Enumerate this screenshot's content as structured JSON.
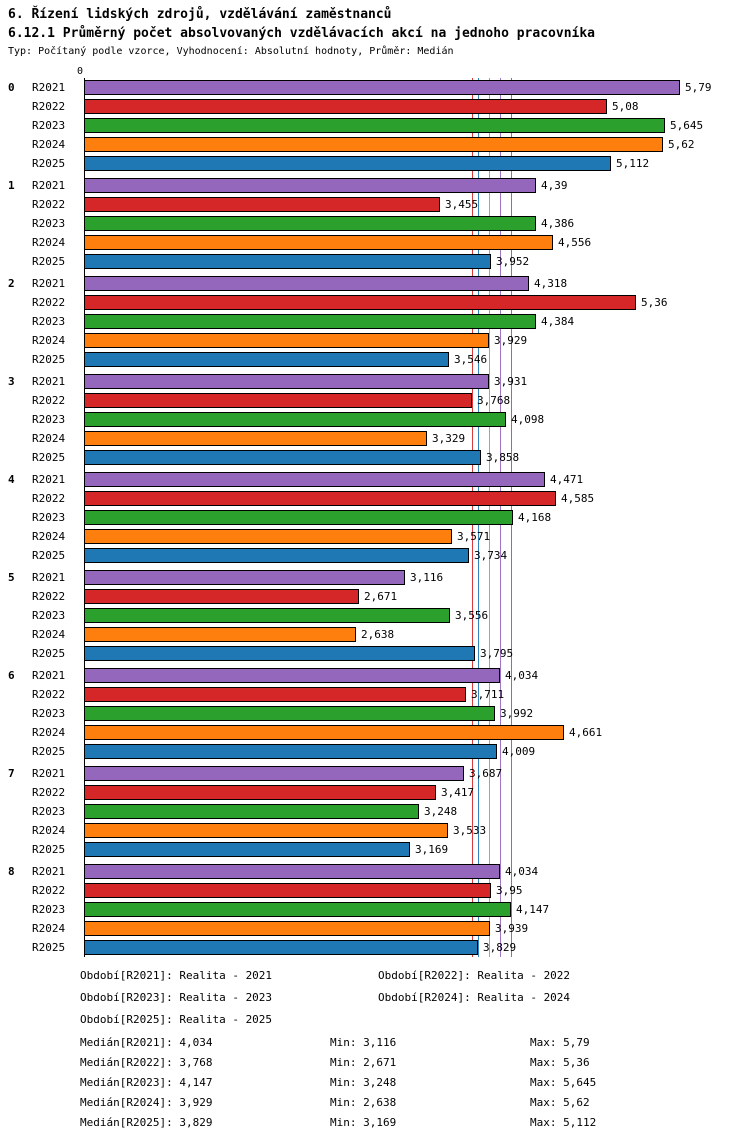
{
  "header": {
    "line1": "6. Řízení lidských zdrojů, vzdělávání zaměstnanců",
    "line2": "6.12.1 Průměrný počet absolvovaných vzdělávacích akcí na jednoho pracovníka",
    "meta": "Typ: Počítaný podle vzorce, Vyhodnocení: Absolutní hodnoty, Průměr: Medián"
  },
  "chart_data": {
    "type": "bar",
    "orientation": "horizontal",
    "axis_origin_label": "0",
    "xlim": [
      0,
      6.45
    ],
    "grid": false,
    "legend_position": "bottom",
    "series": [
      {
        "name": "R2021",
        "color": "#9467bd",
        "median": 4.034,
        "min": 3.116,
        "max": 5.79
      },
      {
        "name": "R2022",
        "color": "#d62728",
        "median": 3.768,
        "min": 2.671,
        "max": 5.36
      },
      {
        "name": "R2023",
        "color": "#2ca02c",
        "median": 4.147,
        "min": 3.248,
        "max": 5.645
      },
      {
        "name": "R2024",
        "color": "#ff7f0e",
        "median": 3.929,
        "min": 2.638,
        "max": 5.62
      },
      {
        "name": "R2025",
        "color": "#1f77b4",
        "median": 3.829,
        "min": 3.169,
        "max": 5.112
      }
    ],
    "groups": [
      {
        "label": "0",
        "values": [
          5.79,
          5.08,
          5.645,
          5.62,
          5.112
        ],
        "value_labels": [
          "5,79",
          "5,08",
          "5,645",
          "5,62",
          "5,112"
        ]
      },
      {
        "label": "1",
        "values": [
          4.39,
          3.455,
          4.386,
          4.556,
          3.952
        ],
        "value_labels": [
          "4,39",
          "3,455",
          "4,386",
          "4,556",
          "3,952"
        ]
      },
      {
        "label": "2",
        "values": [
          4.318,
          5.36,
          4.384,
          3.929,
          3.546
        ],
        "value_labels": [
          "4,318",
          "5,36",
          "4,384",
          "3,929",
          "3,546"
        ]
      },
      {
        "label": "3",
        "values": [
          3.931,
          3.768,
          4.098,
          3.329,
          3.858
        ],
        "value_labels": [
          "3,931",
          "3,768",
          "4,098",
          "3,329",
          "3,858"
        ]
      },
      {
        "label": "4",
        "values": [
          4.471,
          4.585,
          4.168,
          3.571,
          3.734
        ],
        "value_labels": [
          "4,471",
          "4,585",
          "4,168",
          "3,571",
          "3,734"
        ]
      },
      {
        "label": "5",
        "values": [
          3.116,
          2.671,
          3.556,
          2.638,
          3.795
        ],
        "value_labels": [
          "3,116",
          "2,671",
          "3,556",
          "2,638",
          "3,795"
        ]
      },
      {
        "label": "6",
        "values": [
          4.034,
          3.711,
          3.992,
          4.661,
          4.009
        ],
        "value_labels": [
          "4,034",
          "3,711",
          "3,992",
          "4,661",
          "4,009"
        ]
      },
      {
        "label": "7",
        "values": [
          3.687,
          3.417,
          3.248,
          3.533,
          3.169
        ],
        "value_labels": [
          "3,687",
          "3,417",
          "3,248",
          "3,533",
          "3,169"
        ]
      },
      {
        "label": "8",
        "values": [
          4.034,
          3.95,
          4.147,
          3.939,
          3.829
        ],
        "value_labels": [
          "4,034",
          "3,95",
          "4,147",
          "3,939",
          "3,829"
        ]
      }
    ]
  },
  "legend": {
    "rows": [
      [
        "Období[R2021]: Realita - 2021",
        "Období[R2022]: Realita - 2022"
      ],
      [
        "Období[R2023]: Realita - 2023",
        "Období[R2024]: Realita - 2024"
      ],
      [
        "Období[R2025]: Realita - 2025"
      ]
    ]
  },
  "stats": {
    "rows": [
      {
        "median": "Medián[R2021]: 4,034",
        "min": "Min: 3,116",
        "max": "Max: 5,79"
      },
      {
        "median": "Medián[R2022]: 3,768",
        "min": "Min: 2,671",
        "max": "Max: 5,36"
      },
      {
        "median": "Medián[R2023]: 4,147",
        "min": "Min: 3,248",
        "max": "Max: 5,645"
      },
      {
        "median": "Medián[R2024]: 3,929",
        "min": "Min: 2,638",
        "max": "Max: 5,62"
      },
      {
        "median": "Medián[R2025]: 3,829",
        "min": "Min: 3,169",
        "max": "Max: 5,112"
      }
    ]
  }
}
